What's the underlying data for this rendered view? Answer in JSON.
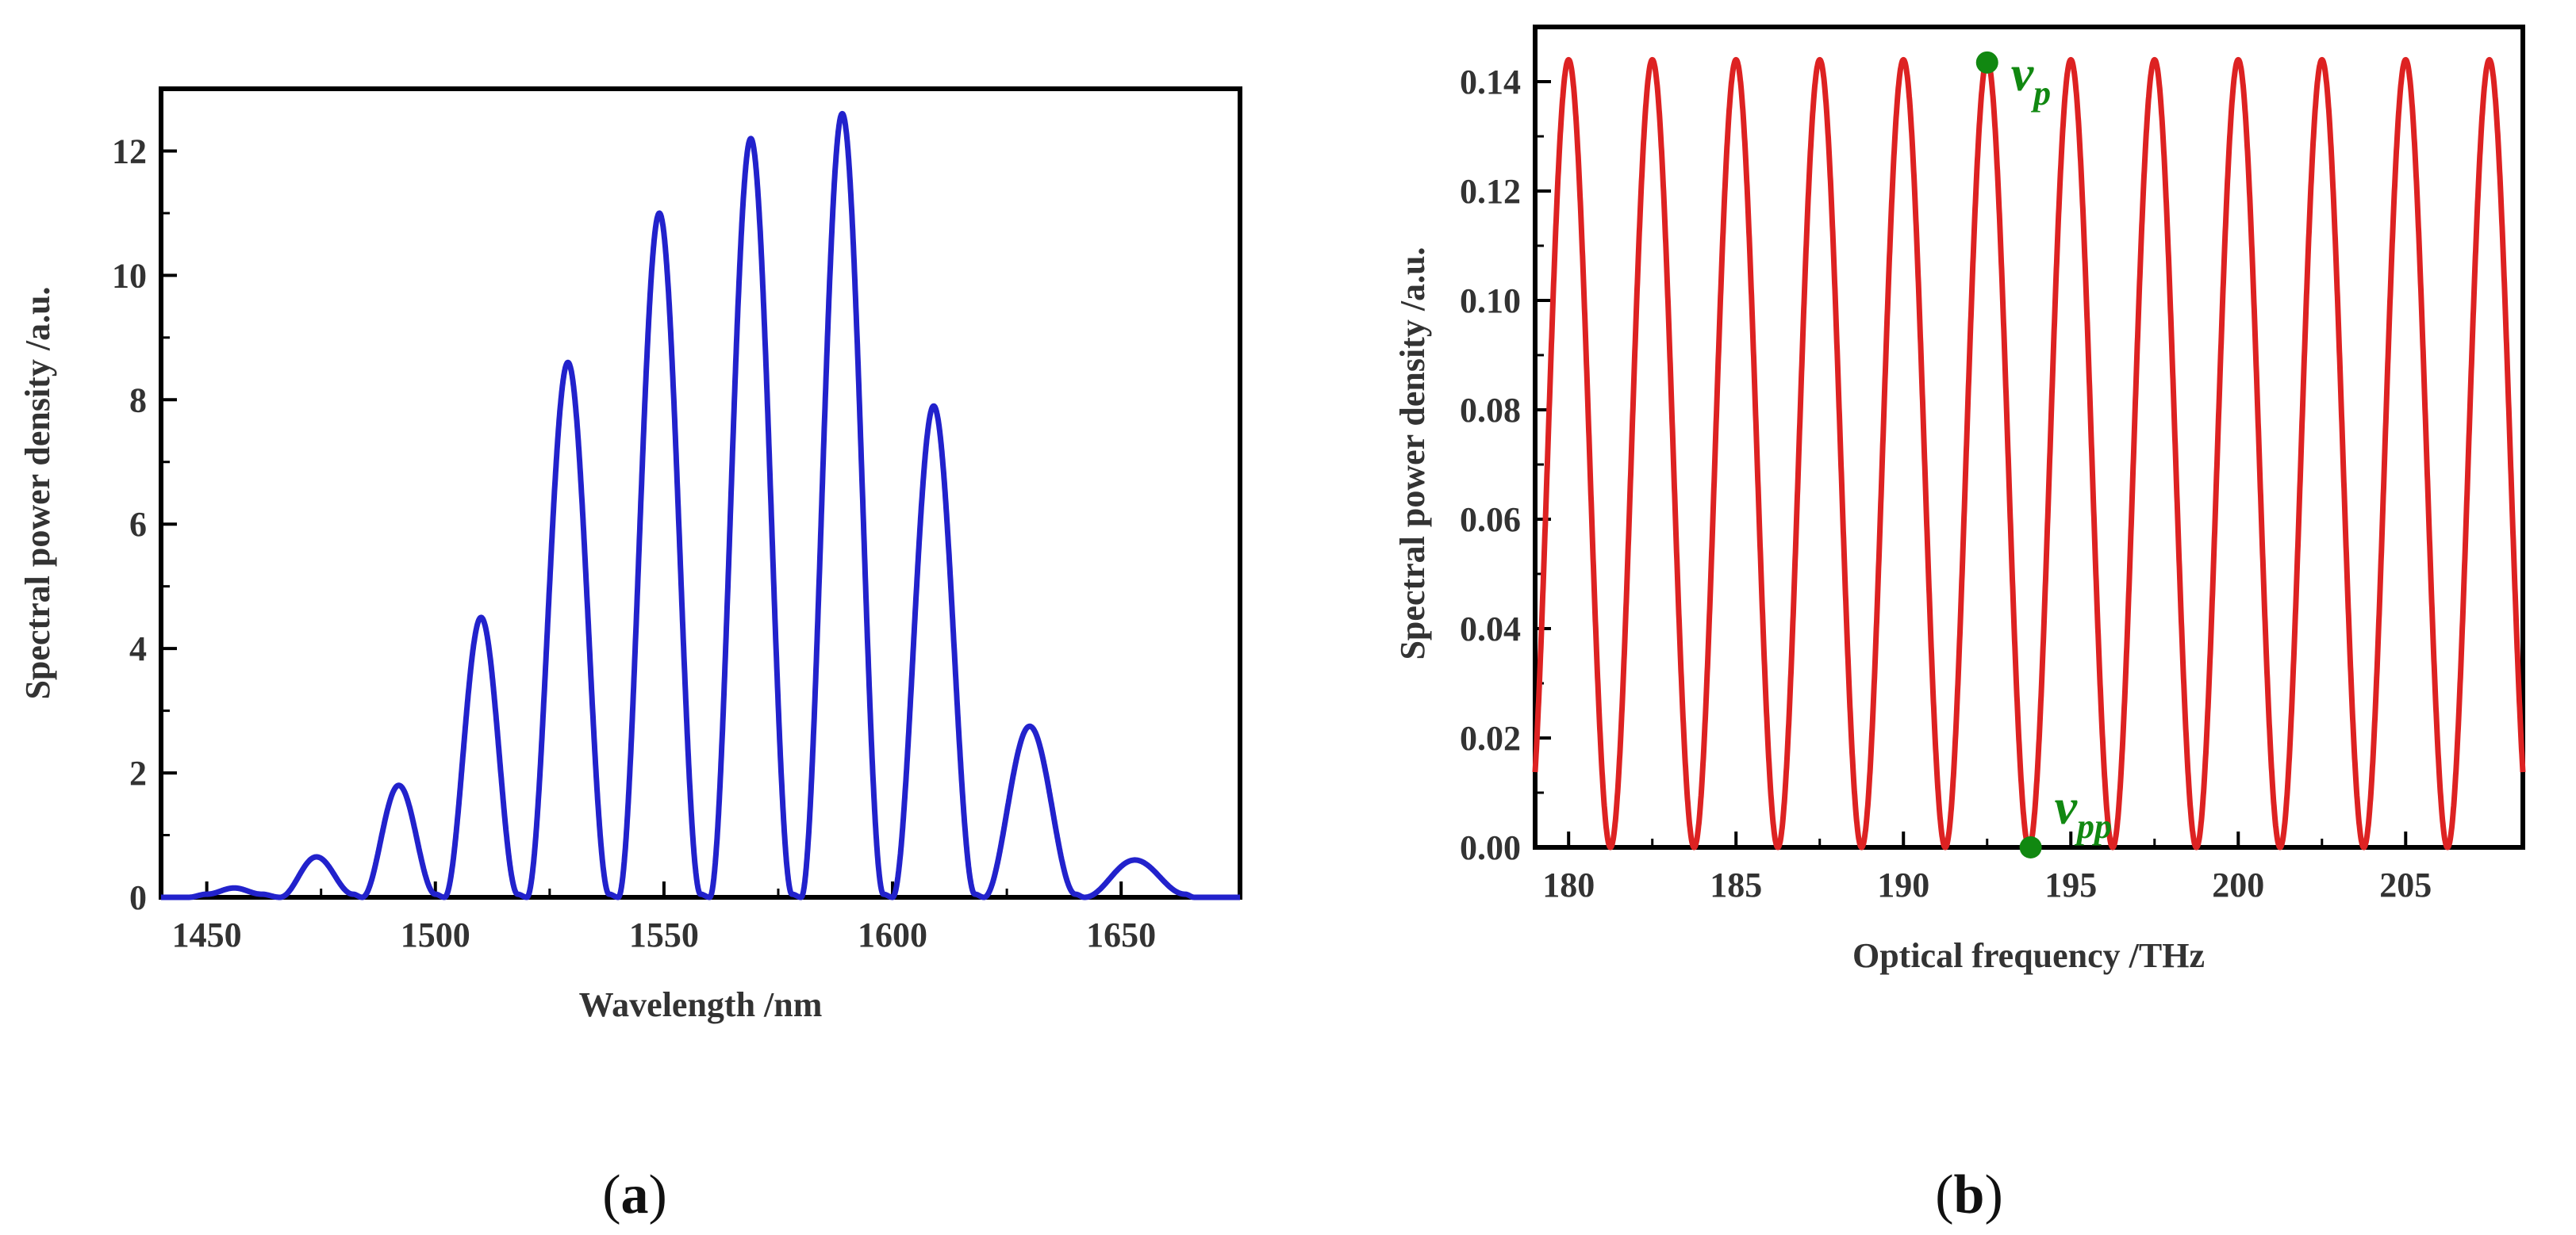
{
  "chart_data": [
    {
      "type": "line",
      "panel_label": "a",
      "xlabel": "Wavelength /nm",
      "ylabel": "Spectral power density /a.u.",
      "xlim": [
        1440,
        1676
      ],
      "ylim": [
        0,
        13
      ],
      "xticks": [
        1450,
        1500,
        1550,
        1600,
        1650
      ],
      "yticks": [
        0,
        2,
        4,
        6,
        8,
        10,
        12
      ],
      "color": "#2222cc",
      "x": [
        1440,
        1446,
        1450,
        1456,
        1462,
        1466,
        1474,
        1482,
        1484,
        1492,
        1500,
        1502,
        1510,
        1518,
        1520,
        1529,
        1538,
        1540,
        1549,
        1558,
        1560,
        1569,
        1578,
        1580,
        1589,
        1598,
        1600,
        1609,
        1618,
        1620,
        1630,
        1640,
        1642,
        1653,
        1664,
        1666,
        1676
      ],
      "y": [
        0,
        0,
        0.05,
        0.15,
        0.05,
        0,
        0.65,
        0.05,
        0,
        1.8,
        0.05,
        0,
        4.5,
        0.05,
        0,
        8.6,
        0.05,
        0,
        11.0,
        0.05,
        0,
        12.2,
        0.05,
        0,
        12.6,
        0.05,
        0,
        7.9,
        0.05,
        0,
        2.75,
        0.05,
        0,
        0.6,
        0.05,
        0,
        0
      ],
      "title": ""
    },
    {
      "type": "line",
      "panel_label": "b",
      "xlabel": "Optical frequency /THz",
      "ylabel": "Spectral power density /a.u.",
      "xlim": [
        179,
        208.5
      ],
      "ylim": [
        0,
        0.15
      ],
      "xticks": [
        180,
        185,
        190,
        195,
        200,
        205
      ],
      "yticks": [
        0.0,
        0.02,
        0.04,
        0.06,
        0.08,
        0.1,
        0.12,
        0.14
      ],
      "color": "#dd2222",
      "period_thz": 2.5,
      "peak_frequency_thz": 180.0,
      "peak_value": 0.144,
      "title": "",
      "annotations": [
        {
          "label": "v",
          "subscript": "p",
          "x": 192.5,
          "y": 0.1435,
          "color": "#118811"
        },
        {
          "label": "v",
          "subscript": "pp",
          "x": 193.8,
          "y": 0.0,
          "color": "#118811"
        }
      ]
    }
  ],
  "panel_labels": {
    "a": "a",
    "b": "b",
    "open": "(",
    "close": ")"
  }
}
